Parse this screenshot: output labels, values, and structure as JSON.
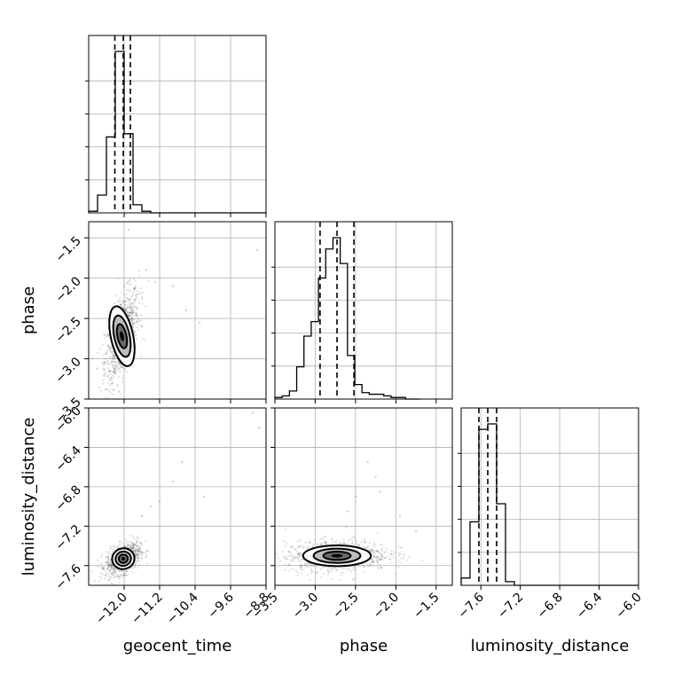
{
  "chart_data": {
    "type": "corner",
    "grid": true,
    "variables": [
      {
        "name": "geocent_time",
        "label": "geocent_time",
        "range": [
          -12.8,
          -8.8
        ],
        "ticks": [
          -12.0,
          -11.2,
          -10.4,
          -9.6,
          -8.8
        ],
        "tick_labels": [
          "−12.0",
          "−11.2",
          "−10.4",
          "−9.6",
          "−8.8"
        ],
        "quantiles": [
          -12.21,
          -12.02,
          -11.86
        ]
      },
      {
        "name": "phase",
        "label": "phase",
        "range": [
          -3.5,
          -1.3
        ],
        "ticks": [
          -3.5,
          -3.0,
          -2.5,
          -2.0,
          -1.5
        ],
        "tick_labels": [
          "−3.5",
          "−3.0",
          "−2.5",
          "−2.0",
          "−1.5"
        ],
        "quantiles": [
          -2.94,
          -2.73,
          -2.52
        ]
      },
      {
        "name": "luminosity_distance",
        "label": "luminosity_distance",
        "range": [
          -7.8,
          -6.0
        ],
        "ticks": [
          -7.6,
          -7.2,
          -6.8,
          -6.4,
          -6.0
        ],
        "tick_labels": [
          "−7.6",
          "−7.2",
          "−6.8",
          "−6.4",
          "−6.0"
        ],
        "quantiles": [
          -7.62,
          -7.53,
          -7.44
        ]
      }
    ],
    "histograms": [
      {
        "variable": "geocent_time",
        "edges": [
          -12.8,
          -12.6,
          -12.4,
          -12.2,
          -12.0,
          -11.8,
          -11.6,
          -11.4,
          -11.2,
          -11.0,
          -10.8,
          -10.6,
          -10.4,
          -10.2,
          -10.0,
          -9.8,
          -9.6,
          -9.4,
          -9.2,
          -9.0,
          -8.8
        ],
        "counts": [
          0.01,
          0.11,
          0.47,
          1.0,
          0.49,
          0.05,
          0.01,
          0,
          0,
          0,
          0,
          0,
          0,
          0,
          0,
          0,
          0,
          0,
          0,
          0
        ]
      },
      {
        "variable": "phase",
        "edges": [
          -3.5,
          -3.41,
          -3.32,
          -3.23,
          -3.14,
          -3.05,
          -2.96,
          -2.87,
          -2.78,
          -2.69,
          -2.6,
          -2.51,
          -2.42,
          -2.33,
          -2.24,
          -2.15,
          -2.06,
          -1.97,
          -1.88,
          -1.79,
          -1.7
        ],
        "counts": [
          0.01,
          0.02,
          0.05,
          0.2,
          0.39,
          0.48,
          0.75,
          0.93,
          1.0,
          0.84,
          0.27,
          0.09,
          0.04,
          0.03,
          0.03,
          0.02,
          0.01,
          0.01,
          0,
          0
        ]
      },
      {
        "variable": "luminosity_distance",
        "edges": [
          -7.8,
          -7.71,
          -7.62,
          -7.53,
          -7.44,
          -7.35,
          -7.26,
          -7.17,
          -7.08,
          -6.99,
          -6.9,
          -6.81,
          -6.72,
          -6.63,
          -6.54,
          -6.45,
          -6.36,
          -6.27,
          -6.18,
          -6.09,
          -6.0
        ],
        "counts": [
          0.04,
          0.35,
          0.86,
          0.89,
          0.45,
          0.02,
          0,
          0,
          0,
          0,
          0,
          0,
          0,
          0,
          0,
          0,
          0,
          0,
          0,
          0
        ]
      }
    ],
    "scatter_panels": [
      {
        "x": "geocent_time",
        "y": "phase",
        "center": [
          -12.05,
          -2.72
        ],
        "spread": [
          0.12,
          0.18
        ],
        "outliers": [
          [
            -11.9,
            -1.4
          ],
          [
            -11.5,
            -1.9
          ],
          [
            -11.3,
            -2.05
          ],
          [
            -10.9,
            -2.1
          ],
          [
            -10.6,
            -2.4
          ],
          [
            -10.3,
            -2.55
          ],
          [
            -9.0,
            -1.65
          ],
          [
            -11.7,
            -2.2
          ],
          [
            -11.6,
            -2.6
          ]
        ]
      },
      {
        "x": "geocent_time",
        "y": "luminosity_distance",
        "center": [
          -12.02,
          -7.53
        ],
        "spread": [
          0.12,
          0.05
        ],
        "outliers": [
          [
            -9.1,
            -6.05
          ],
          [
            -8.95,
            -6.2
          ],
          [
            -10.7,
            -6.55
          ],
          [
            -10.9,
            -6.75
          ],
          [
            -11.2,
            -6.95
          ],
          [
            -11.6,
            -7.1
          ],
          [
            -10.2,
            -6.9
          ],
          [
            -11.4,
            -7.0
          ]
        ]
      },
      {
        "x": "phase",
        "y": "luminosity_distance",
        "center": [
          -2.73,
          -7.5
        ],
        "spread": [
          0.2,
          0.05
        ],
        "outliers": [
          [
            -2.35,
            -6.55
          ],
          [
            -2.25,
            -6.7
          ],
          [
            -2.2,
            -6.85
          ],
          [
            -1.95,
            -7.1
          ],
          [
            -1.75,
            -7.25
          ],
          [
            -2.5,
            -6.9
          ],
          [
            -2.6,
            -7.05
          ]
        ]
      }
    ]
  }
}
